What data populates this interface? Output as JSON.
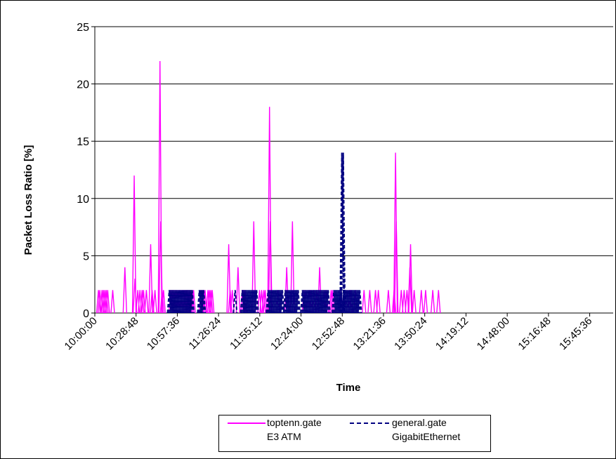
{
  "chart_data": {
    "type": "line",
    "ylabel": "Packet Loss Ratio [%]",
    "xlabel": "Time",
    "ylim": [
      0,
      25
    ],
    "yticks": [
      "0",
      "5",
      "10",
      "15",
      "20",
      "25"
    ],
    "xticks": [
      "10:00:00",
      "10:28:48",
      "10:57:36",
      "11:26:24",
      "11:55:12",
      "12:24:00",
      "12:52:48",
      "13:21:36",
      "13:50:24",
      "14:19:12",
      "14:48:00",
      "15:16:48",
      "15:45:36"
    ],
    "xlim": [
      "10:00:00",
      "16:02:00"
    ],
    "grid": "horizontal",
    "legend_position": "bottom",
    "series": [
      {
        "name": "toptenn.gate\nE3 ATM",
        "color": "#FF00FF",
        "style": "solid",
        "spikes": [
          [
            "10:02:30",
            2
          ],
          [
            "10:03:30",
            2
          ],
          [
            "10:05:00",
            2
          ],
          [
            "10:06:00",
            2
          ],
          [
            "10:07:00",
            2
          ],
          [
            "10:08:00",
            2
          ],
          [
            "10:09:00",
            2
          ],
          [
            "10:12:30",
            2
          ],
          [
            "10:21:00",
            4
          ],
          [
            "10:27:30",
            12
          ],
          [
            "10:28:00",
            3
          ],
          [
            "10:30:00",
            2
          ],
          [
            "10:31:30",
            2
          ],
          [
            "10:33:00",
            2
          ],
          [
            "10:34:00",
            2
          ],
          [
            "10:36:00",
            2
          ],
          [
            "10:39:00",
            6
          ],
          [
            "10:40:00",
            2
          ],
          [
            "10:42:00",
            2
          ],
          [
            "10:45:30",
            22
          ],
          [
            "10:46:00",
            8
          ],
          [
            "10:47:00",
            2
          ],
          [
            "10:48:00",
            2
          ],
          [
            "10:53:00",
            2
          ],
          [
            "10:54:00",
            2
          ],
          [
            "10:55:00",
            2
          ],
          [
            "10:56:00",
            2
          ],
          [
            "10:57:00",
            2
          ],
          [
            "10:58:00",
            2
          ],
          [
            "10:59:00",
            2
          ],
          [
            "11:00:00",
            2
          ],
          [
            "11:01:00",
            2
          ],
          [
            "11:02:00",
            2
          ],
          [
            "11:03:00",
            2
          ],
          [
            "11:04:00",
            2
          ],
          [
            "11:05:00",
            2
          ],
          [
            "11:06:00",
            2
          ],
          [
            "11:07:00",
            2
          ],
          [
            "11:08:00",
            2
          ],
          [
            "11:09:00",
            2
          ],
          [
            "11:14:00",
            2
          ],
          [
            "11:15:00",
            2
          ],
          [
            "11:16:00",
            2
          ],
          [
            "11:17:00",
            2
          ],
          [
            "11:19:00",
            2
          ],
          [
            "11:20:00",
            2
          ],
          [
            "11:21:00",
            2
          ],
          [
            "11:22:00",
            2
          ],
          [
            "11:33:30",
            6
          ],
          [
            "11:34:30",
            2
          ],
          [
            "11:36:00",
            2
          ],
          [
            "11:40:00",
            4
          ],
          [
            "11:43:00",
            2
          ],
          [
            "11:44:00",
            2
          ],
          [
            "11:45:00",
            2
          ],
          [
            "11:51:00",
            8
          ],
          [
            "11:55:00",
            2
          ],
          [
            "11:56:30",
            2
          ],
          [
            "11:58:00",
            2
          ],
          [
            "11:59:00",
            2
          ],
          [
            "12:02:00",
            18
          ],
          [
            "12:02:30",
            8
          ],
          [
            "12:08:00",
            2
          ],
          [
            "12:14:00",
            4
          ],
          [
            "12:18:00",
            8
          ],
          [
            "12:26:00",
            2
          ],
          [
            "12:27:00",
            2
          ],
          [
            "12:29:00",
            2
          ],
          [
            "12:30:00",
            2
          ],
          [
            "12:31:00",
            2
          ],
          [
            "12:33:00",
            2
          ],
          [
            "12:35:00",
            2
          ],
          [
            "12:37:00",
            4
          ],
          [
            "12:40:00",
            2
          ],
          [
            "12:41:00",
            2
          ],
          [
            "12:42:00",
            2
          ],
          [
            "12:45:00",
            2
          ],
          [
            "12:46:00",
            2
          ],
          [
            "12:51:00",
            2
          ],
          [
            "12:52:00",
            2
          ],
          [
            "12:56:00",
            2
          ],
          [
            "12:58:00",
            2
          ],
          [
            "12:59:00",
            2
          ],
          [
            "13:02:00",
            2
          ],
          [
            "13:08:00",
            2
          ],
          [
            "13:12:00",
            2
          ],
          [
            "13:16:00",
            2
          ],
          [
            "13:18:00",
            2
          ],
          [
            "13:25:00",
            2
          ],
          [
            "13:29:00",
            2
          ],
          [
            "13:30:00",
            14
          ],
          [
            "13:30:30",
            8
          ],
          [
            "13:34:00",
            2
          ],
          [
            "13:36:00",
            2
          ],
          [
            "13:38:00",
            2
          ],
          [
            "13:40:00",
            4
          ],
          [
            "13:40:30",
            6
          ],
          [
            "13:43:00",
            2
          ],
          [
            "13:48:00",
            2
          ],
          [
            "13:51:00",
            2
          ],
          [
            "13:56:00",
            2
          ],
          [
            "14:00:00",
            2
          ]
        ]
      },
      {
        "name": "general.gate\nGigabitEthernet",
        "color": "#000080",
        "style": "dashed",
        "spikes": [
          [
            "10:52:00",
            2
          ],
          [
            "10:53:00",
            2
          ],
          [
            "10:54:00",
            2
          ],
          [
            "10:55:00",
            2
          ],
          [
            "10:56:00",
            2
          ],
          [
            "10:57:00",
            2
          ],
          [
            "10:58:00",
            2
          ],
          [
            "10:59:00",
            2
          ],
          [
            "11:00:00",
            2
          ],
          [
            "11:01:00",
            2
          ],
          [
            "11:02:00",
            2
          ],
          [
            "11:03:00",
            2
          ],
          [
            "11:04:00",
            2
          ],
          [
            "11:05:00",
            2
          ],
          [
            "11:06:00",
            2
          ],
          [
            "11:07:00",
            2
          ],
          [
            "11:08:00",
            2
          ],
          [
            "11:13:00",
            2
          ],
          [
            "11:14:00",
            2
          ],
          [
            "11:15:00",
            2
          ],
          [
            "11:16:00",
            2
          ],
          [
            "11:38:00",
            2
          ],
          [
            "11:43:00",
            2
          ],
          [
            "11:44:00",
            2
          ],
          [
            "11:45:00",
            2
          ],
          [
            "11:46:00",
            2
          ],
          [
            "11:47:00",
            2
          ],
          [
            "11:48:00",
            2
          ],
          [
            "11:49:00",
            2
          ],
          [
            "11:50:00",
            2
          ],
          [
            "11:51:00",
            2
          ],
          [
            "11:52:00",
            2
          ],
          [
            "11:53:00",
            2
          ],
          [
            "12:01:00",
            2
          ],
          [
            "12:02:00",
            2
          ],
          [
            "12:03:00",
            2
          ],
          [
            "12:04:00",
            2
          ],
          [
            "12:05:00",
            2
          ],
          [
            "12:06:00",
            2
          ],
          [
            "12:07:00",
            2
          ],
          [
            "12:08:00",
            2
          ],
          [
            "12:09:00",
            2
          ],
          [
            "12:10:00",
            2
          ],
          [
            "12:11:00",
            2
          ],
          [
            "12:13:00",
            2
          ],
          [
            "12:14:00",
            2
          ],
          [
            "12:15:00",
            2
          ],
          [
            "12:16:00",
            2
          ],
          [
            "12:17:00",
            2
          ],
          [
            "12:18:00",
            2
          ],
          [
            "12:19:00",
            2
          ],
          [
            "12:20:00",
            2
          ],
          [
            "12:21:00",
            2
          ],
          [
            "12:22:00",
            2
          ],
          [
            "12:25:00",
            2
          ],
          [
            "12:26:00",
            2
          ],
          [
            "12:27:00",
            2
          ],
          [
            "12:28:00",
            2
          ],
          [
            "12:29:00",
            2
          ],
          [
            "12:30:00",
            2
          ],
          [
            "12:31:00",
            2
          ],
          [
            "12:32:00",
            2
          ],
          [
            "12:33:00",
            2
          ],
          [
            "12:34:00",
            2
          ],
          [
            "12:35:00",
            2
          ],
          [
            "12:36:00",
            2
          ],
          [
            "12:37:00",
            2
          ],
          [
            "12:38:00",
            2
          ],
          [
            "12:39:00",
            2
          ],
          [
            "12:40:00",
            2
          ],
          [
            "12:41:00",
            2
          ],
          [
            "12:42:00",
            2
          ],
          [
            "12:43:00",
            2
          ],
          [
            "12:47:00",
            2
          ],
          [
            "12:48:00",
            2
          ],
          [
            "12:49:00",
            2
          ],
          [
            "12:50:00",
            2
          ],
          [
            "12:51:00",
            2
          ],
          [
            "12:52:00",
            2
          ],
          [
            "12:52:30",
            14
          ],
          [
            "12:53:00",
            11
          ],
          [
            "12:53:30",
            14
          ],
          [
            "12:54:00",
            2
          ],
          [
            "12:55:00",
            2
          ],
          [
            "12:56:00",
            2
          ],
          [
            "12:57:00",
            2
          ],
          [
            "12:58:00",
            2
          ],
          [
            "12:59:00",
            2
          ],
          [
            "13:00:00",
            2
          ],
          [
            "13:01:00",
            2
          ],
          [
            "13:02:00",
            2
          ],
          [
            "13:03:00",
            2
          ],
          [
            "13:04:00",
            2
          ],
          [
            "13:05:00",
            2
          ]
        ]
      }
    ]
  },
  "legend": {
    "items": [
      {
        "line1": "toptenn.gate",
        "line2": "E3 ATM",
        "color": "#FF00FF",
        "style": "solid"
      },
      {
        "line1": "general.gate",
        "line2": "GigabitEthernet",
        "color": "#000080",
        "style": "dashed"
      }
    ]
  }
}
